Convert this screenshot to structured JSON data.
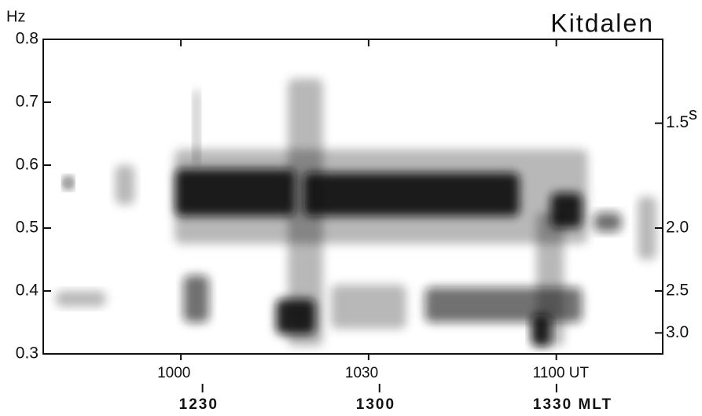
{
  "chart_data": {
    "type": "spectrogram",
    "title": "Kitdalen",
    "y_label": "Hz",
    "y2_label": "s",
    "ylim": [
      0.3,
      0.8
    ],
    "yticks": [
      0.3,
      0.4,
      0.5,
      0.6,
      0.7,
      0.8
    ],
    "y2scale": "reciprocal",
    "y2ticks": [
      1.5,
      {
        "value": 2.0,
        "label": "2.0"
      },
      2.5,
      {
        "value": 3.0,
        "label": "3.0"
      }
    ],
    "xlim": [
      578,
      677
    ],
    "xticks": [
      {
        "value": 600,
        "label": "1000"
      },
      {
        "value": 630,
        "label": "1030"
      },
      {
        "value": 660,
        "label": "1100 UT"
      }
    ],
    "x2lim": [
      723,
      828
    ],
    "x2ticks": [
      {
        "value": 750,
        "label": "1230"
      },
      {
        "value": 780,
        "label": "1300"
      },
      {
        "value": 810,
        "label": "1330 MLT"
      }
    ],
    "color": "#111111",
    "blobs": [
      {
        "t": [
          617.1,
          622.7
        ],
        "f": [
          0.3125,
          0.7375
        ],
        "level": 1
      },
      {
        "t": [
          656.8,
          661.2
        ],
        "f": [
          0.3125,
          0.525
        ],
        "level": 1
      },
      {
        "t": [
          599,
          665
        ],
        "f": [
          0.475,
          0.625
        ],
        "level": 1
      },
      {
        "t": [
          580,
          588
        ],
        "f": [
          0.375,
          0.4
        ],
        "level": 1
      },
      {
        "t": [
          589.5,
          592.6
        ],
        "f": [
          0.5375,
          0.6
        ],
        "level": 1
      },
      {
        "t": [
          673,
          676
        ],
        "f": [
          0.45,
          0.55
        ],
        "level": 1
      },
      {
        "t": [
          602,
          603
        ],
        "f": [
          0.6,
          0.72
        ],
        "level": 1
      },
      {
        "t": [
          624,
          636
        ],
        "f": [
          0.34,
          0.41
        ],
        "level": 1
      },
      {
        "t": [
          581.3,
          582.7
        ],
        "f": [
          0.5625,
          0.581
        ],
        "level": 3
      },
      {
        "t": [
          599.1,
          618.3
        ],
        "f": [
          0.519,
          0.594
        ],
        "level": 3
      },
      {
        "t": [
          619.6,
          654.1
        ],
        "f": [
          0.519,
          0.588
        ],
        "level": 3
      },
      {
        "t": [
          659.1,
          664.1
        ],
        "f": [
          0.5,
          0.556
        ],
        "level": 3
      },
      {
        "t": [
          666,
          670.4
        ],
        "f": [
          0.494,
          0.525
        ],
        "level": 2
      },
      {
        "t": [
          600.4,
          604.5
        ],
        "f": [
          0.35,
          0.425
        ],
        "level": 2
      },
      {
        "t": [
          615.2,
          621.5
        ],
        "f": [
          0.331,
          0.3875
        ],
        "level": 3
      },
      {
        "t": [
          639,
          664.1
        ],
        "f": [
          0.35,
          0.406
        ],
        "level": 2
      },
      {
        "t": [
          656,
          659.1
        ],
        "f": [
          0.3125,
          0.3625
        ],
        "level": 3
      }
    ]
  }
}
